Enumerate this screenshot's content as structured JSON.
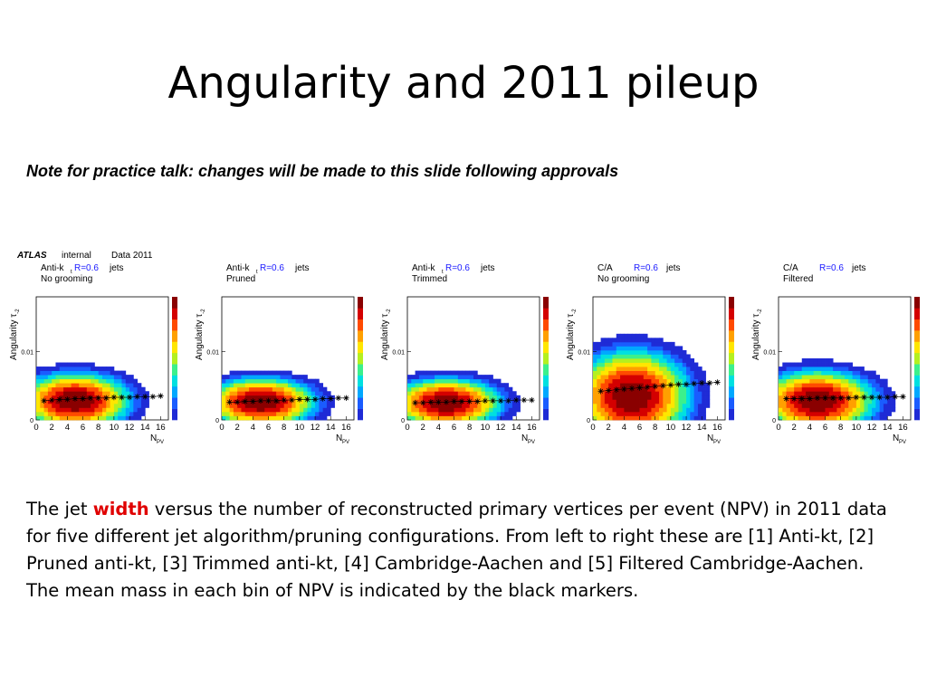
{
  "slide": {
    "title": "Angularity and 2011 pileup",
    "note": "Note for practice talk: changes will be made to this slide following approvals"
  },
  "caption": {
    "before": "The jet ",
    "highlight": "width",
    "after": " versus the number of reconstructed primary vertices per event (NPV) in 2011 data for five different jet algorithm/pruning configurations. From left to right these are [1] Anti-kt, [2] Pruned anti-kt, [3] Trimmed anti-kt, [4] Cambridge-Aachen and [5] Filtered Cambridge-Aachen. The mean mass in each bin of NPV is indicated by the black markers."
  },
  "colors": {
    "highlight": "#e00000",
    "r_label": "#1a1aff",
    "markers": "#000000"
  },
  "chart_data": [
    {
      "type": "heatmap",
      "header": [
        "ATLAS",
        "internal",
        "Data 2011"
      ],
      "algo": "Anti-k",
      "algo_sub": "t",
      "radius": "R=0.6",
      "jets": "jets",
      "grooming": "No grooming",
      "xlabel": "N",
      "xlabel_sub": "PV",
      "ylabel": "Angularity",
      "ylabel_sym": "τ",
      "ylabel_sub": "-2",
      "xticks": [
        "0",
        "2",
        "4",
        "6",
        "8",
        "10",
        "12",
        "14",
        "16"
      ],
      "yticks": [
        "0",
        "0.01"
      ],
      "xlim": [
        0,
        17
      ],
      "ylim": [
        0,
        0.018
      ],
      "density": {
        "peak_x": 5,
        "peak_y": 0.0028,
        "spread_y": 0.0055,
        "spread_x": 9.5
      },
      "markers": {
        "x": [
          1,
          2,
          3,
          4,
          5,
          6,
          7,
          8,
          9,
          10,
          11,
          12,
          13,
          14,
          15,
          16
        ],
        "y": [
          0.0028,
          0.0029,
          0.003,
          0.003,
          0.0031,
          0.0031,
          0.0032,
          0.0032,
          0.0032,
          0.0033,
          0.0033,
          0.0033,
          0.0034,
          0.0034,
          0.0034,
          0.0035
        ]
      }
    },
    {
      "type": "heatmap",
      "header": [],
      "algo": "Anti-k",
      "algo_sub": "t",
      "radius": "R=0.6",
      "jets": "jets",
      "grooming": "Pruned",
      "xlabel": "N",
      "xlabel_sub": "PV",
      "ylabel": "Angularity",
      "ylabel_sym": "τ",
      "ylabel_sub": "-2",
      "xticks": [
        "0",
        "2",
        "4",
        "6",
        "8",
        "10",
        "12",
        "14",
        "16"
      ],
      "yticks": [
        "0",
        "0.01"
      ],
      "xlim": [
        0,
        17
      ],
      "ylim": [
        0,
        0.018
      ],
      "density": {
        "peak_x": 5,
        "peak_y": 0.0026,
        "spread_y": 0.0048,
        "spread_x": 9.5
      },
      "markers": {
        "x": [
          1,
          2,
          3,
          4,
          5,
          6,
          7,
          8,
          9,
          10,
          11,
          12,
          13,
          14,
          15,
          16
        ],
        "y": [
          0.0026,
          0.0026,
          0.0027,
          0.0027,
          0.0028,
          0.0028,
          0.0028,
          0.0029,
          0.0029,
          0.003,
          0.003,
          0.003,
          0.0031,
          0.0031,
          0.0032,
          0.0032
        ]
      }
    },
    {
      "type": "heatmap",
      "header": [],
      "algo": "Anti-k",
      "algo_sub": "t",
      "radius": "R=0.6",
      "jets": "jets",
      "grooming": "Trimmed",
      "xlabel": "N",
      "xlabel_sub": "PV",
      "ylabel": "Angularity",
      "ylabel_sym": "τ",
      "ylabel_sub": "-2",
      "xticks": [
        "0",
        "2",
        "4",
        "6",
        "8",
        "10",
        "12",
        "14",
        "16"
      ],
      "yticks": [
        "0",
        "0.01"
      ],
      "xlim": [
        0,
        17
      ],
      "ylim": [
        0,
        0.018
      ],
      "density": {
        "peak_x": 5,
        "peak_y": 0.0025,
        "spread_y": 0.0048,
        "spread_x": 9.5
      },
      "markers": {
        "x": [
          1,
          2,
          3,
          4,
          5,
          6,
          7,
          8,
          9,
          10,
          11,
          12,
          13,
          14,
          15,
          16
        ],
        "y": [
          0.0025,
          0.0025,
          0.0026,
          0.0026,
          0.0026,
          0.0027,
          0.0027,
          0.0027,
          0.0027,
          0.0028,
          0.0028,
          0.0028,
          0.0028,
          0.0029,
          0.0029,
          0.0029
        ]
      }
    },
    {
      "type": "heatmap",
      "header": [],
      "algo": "C/A",
      "algo_sub": "",
      "radius": "R=0.6",
      "jets": "jets",
      "grooming": "No grooming",
      "xlabel": "N",
      "xlabel_sub": "PV",
      "ylabel": "Angularity",
      "ylabel_sym": "τ",
      "ylabel_sub": "-2",
      "xticks": [
        "0",
        "2",
        "4",
        "6",
        "8",
        "10",
        "12",
        "14",
        "16"
      ],
      "yticks": [
        "0",
        "0.01"
      ],
      "xlim": [
        0,
        17
      ],
      "ylim": [
        0,
        0.018
      ],
      "density": {
        "peak_x": 5,
        "peak_y": 0.0035,
        "spread_y": 0.009,
        "spread_x": 10
      },
      "markers": {
        "x": [
          1,
          2,
          3,
          4,
          5,
          6,
          7,
          8,
          9,
          10,
          11,
          12,
          13,
          14,
          15,
          16
        ],
        "y": [
          0.0042,
          0.0043,
          0.0044,
          0.0045,
          0.0046,
          0.0047,
          0.0048,
          0.0049,
          0.005,
          0.0051,
          0.0052,
          0.0052,
          0.0053,
          0.0054,
          0.0054,
          0.0055
        ]
      }
    },
    {
      "type": "heatmap",
      "header": [],
      "algo": "C/A",
      "algo_sub": "",
      "radius": "R=0.6",
      "jets": "jets",
      "grooming": "Filtered",
      "xlabel": "N",
      "xlabel_sub": "PV",
      "ylabel": "Angularity",
      "ylabel_sym": "τ",
      "ylabel_sub": "-2",
      "xticks": [
        "0",
        "2",
        "4",
        "6",
        "8",
        "10",
        "12",
        "14",
        "16"
      ],
      "yticks": [
        "0",
        "0.01"
      ],
      "xlim": [
        0,
        17
      ],
      "ylim": [
        0,
        0.018
      ],
      "density": {
        "peak_x": 5,
        "peak_y": 0.0028,
        "spread_y": 0.006,
        "spread_x": 10
      },
      "markers": {
        "x": [
          1,
          2,
          3,
          4,
          5,
          6,
          7,
          8,
          9,
          10,
          11,
          12,
          13,
          14,
          15,
          16
        ],
        "y": [
          0.0031,
          0.0031,
          0.0031,
          0.0031,
          0.0032,
          0.0032,
          0.0032,
          0.0032,
          0.0032,
          0.0033,
          0.0033,
          0.0033,
          0.0033,
          0.0033,
          0.0034,
          0.0034
        ]
      }
    }
  ]
}
